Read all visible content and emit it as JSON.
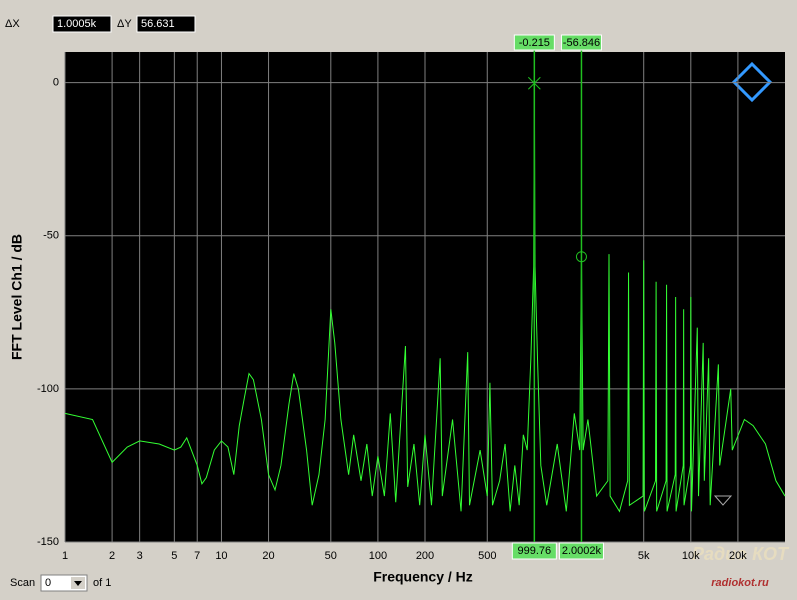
{
  "readout": {
    "dx_symbol": "ΔX",
    "dx": {
      "value": 1000.5,
      "label": "1.0005k"
    },
    "dy_symbol": "ΔY",
    "dy": 56.631
  },
  "chart_data": {
    "type": "line",
    "xlabel": "Frequency / Hz",
    "ylabel": "FFT Level Ch1 / dB",
    "xscale": "log",
    "xlim": [
      1,
      40000
    ],
    "ylim": [
      -150,
      10
    ],
    "xticks": [
      1,
      2,
      3,
      5,
      7,
      10,
      20,
      50,
      100,
      200,
      500,
      {
        "value": 5000,
        "label": "5k"
      },
      {
        "value": 10000,
        "label": "10k"
      },
      {
        "value": 20000,
        "label": "20k"
      }
    ],
    "yticks": [
      0,
      -50,
      -100,
      -150
    ],
    "grid": true,
    "x": [
      1,
      1.5,
      2,
      2.5,
      3,
      4,
      5,
      5.5,
      6,
      7,
      7.5,
      8,
      9,
      10,
      11,
      12,
      13,
      14,
      15,
      16,
      18,
      20,
      22,
      24,
      27,
      29,
      31,
      35,
      38,
      42,
      46,
      50,
      53,
      58,
      65,
      70,
      78,
      85,
      92,
      100,
      110,
      120,
      130,
      150,
      155,
      170,
      185,
      200,
      220,
      250,
      258,
      300,
      340,
      375,
      385,
      450,
      500,
      520,
      540,
      600,
      650,
      700,
      750,
      800,
      850,
      900,
      950,
      990,
      999.76,
      1010,
      1050,
      1100,
      1200,
      1400,
      1600,
      1800,
      1950,
      2000.2,
      2050,
      2200,
      2500,
      2950,
      3000,
      3050,
      3500,
      3950,
      4000,
      4050,
      4950,
      5000,
      5050,
      5950,
      6000,
      6050,
      6950,
      7000,
      7050,
      7950,
      8000,
      8050,
      8950,
      9000,
      9050,
      9950,
      10000,
      10100,
      11000,
      11200,
      12000,
      12200,
      13000,
      13300,
      15000,
      15300,
      18000,
      18400,
      22000,
      25000,
      30000,
      35000,
      40000
    ],
    "series": [
      {
        "color": "#33ff33",
        "values": [
          -108,
          -110,
          -124,
          -119,
          -117,
          -118,
          -120,
          -119,
          -116,
          -125,
          -131,
          -129,
          -120,
          -117,
          -119,
          -128,
          -112,
          -103,
          -95,
          -97,
          -110,
          -128,
          -133,
          -125,
          -105,
          -95,
          -100,
          -120,
          -138,
          -128,
          -110,
          -74,
          -85,
          -110,
          -128,
          -115,
          -130,
          -118,
          -135,
          -122,
          -135,
          -108,
          -137,
          -86,
          -132,
          -118,
          -138,
          -115,
          -138,
          -90,
          -135,
          -110,
          -140,
          -88,
          -138,
          -120,
          -135,
          -98,
          -138,
          -130,
          -118,
          -140,
          -125,
          -138,
          -115,
          -120,
          -90,
          -60,
          -0.215,
          -60,
          -92,
          -125,
          -138,
          -118,
          -140,
          -108,
          -120,
          -56.846,
          -120,
          -110,
          -135,
          -130,
          -56,
          -135,
          -140,
          -130,
          -62,
          -138,
          -135,
          -58,
          -140,
          -130,
          -65,
          -140,
          -130,
          -66,
          -140,
          -128,
          -70,
          -140,
          -125,
          -74,
          -138,
          -125,
          -70,
          -140,
          -80,
          -135,
          -85,
          -130,
          -90,
          -138,
          -92,
          -125,
          -100,
          -120,
          -110,
          -112,
          -118,
          -130,
          -135
        ]
      }
    ],
    "cursors": [
      {
        "x": 999.76,
        "y": -0.215,
        "symbol": "x"
      },
      {
        "x": {
          "value": 2000.2,
          "label": "2.0002k"
        },
        "y": -56.846,
        "symbol": "o"
      }
    ]
  },
  "scan": {
    "label": "Scan",
    "value": 0,
    "of": "of 1"
  },
  "watermark": {
    "line1": "Радио КОТ",
    "line2": "radiokot.ru"
  }
}
